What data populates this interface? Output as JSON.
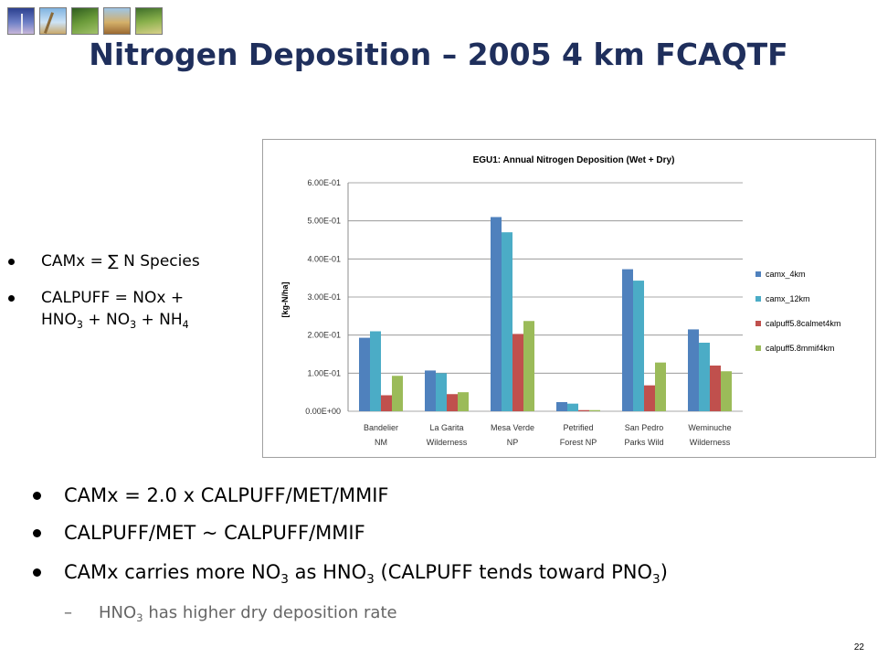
{
  "slide": {
    "title": "Nitrogen Deposition – 2005 4 km FCAQTF",
    "page_number": "22",
    "thumbnails": [
      "wind-turbine-thumbnail",
      "grass-thumbnail",
      "forest-thumbnail",
      "autumn-field-thumbnail",
      "wetland-thumbnail"
    ]
  },
  "side_bullets": [
    {
      "plain": "CAMx = ∑ N Species"
    },
    {
      "parts": [
        "CALPUFF = NOx +",
        "HNO",
        "3",
        " + NO",
        "3",
        " + NH",
        "4"
      ]
    }
  ],
  "main_bullets": [
    {
      "plain": "CAMx = 2.0 x CALPUFF/MET/MMIF"
    },
    {
      "plain": "CALPUFF/MET ~ CALPUFF/MMIF"
    },
    {
      "parts": [
        "CAMx carries more NO",
        "3",
        " as HNO",
        "3",
        " (CALPUFF tends toward PNO",
        "3",
        ")"
      ]
    }
  ],
  "sub_bullet": {
    "dash": "–",
    "parts": [
      "HNO",
      "3",
      " has higher dry deposition rate"
    ]
  },
  "chart_data": {
    "type": "bar",
    "title": "EGU1: Annual Nitrogen Deposition (Wet + Dry)",
    "ylabel": "[kg-N/ha]",
    "ylim": [
      0,
      0.6
    ],
    "yticks": [
      0.0,
      0.1,
      0.2,
      0.3,
      0.4,
      0.5,
      0.6
    ],
    "ytick_labels": [
      "0.00E+00",
      "1.00E-01",
      "2.00E-01",
      "3.00E-01",
      "4.00E-01",
      "5.00E-01",
      "6.00E-01"
    ],
    "categories": [
      [
        "Bandelier",
        "NM"
      ],
      [
        "La Garita",
        "Wilderness"
      ],
      [
        "Mesa Verde",
        "NP"
      ],
      [
        "Petrified",
        "Forest NP"
      ],
      [
        "San Pedro",
        "Parks Wild"
      ],
      [
        "Weminuche",
        "Wilderness"
      ]
    ],
    "series": [
      {
        "name": "camx_4km",
        "color": "#4f81bd",
        "values": [
          0.193,
          0.107,
          0.51,
          0.024,
          0.373,
          0.215
        ]
      },
      {
        "name": "camx_12km",
        "color": "#4bacc6",
        "values": [
          0.21,
          0.1,
          0.47,
          0.02,
          0.343,
          0.18
        ]
      },
      {
        "name": "calpuff5.8calmet4km",
        "color": "#c0504d",
        "values": [
          0.042,
          0.045,
          0.203,
          0.003,
          0.068,
          0.12
        ]
      },
      {
        "name": "calpuff5.8mmif4km",
        "color": "#9bbb59",
        "values": [
          0.093,
          0.05,
          0.237,
          0.003,
          0.128,
          0.105
        ]
      }
    ],
    "grid": true,
    "legend_position": "right"
  }
}
